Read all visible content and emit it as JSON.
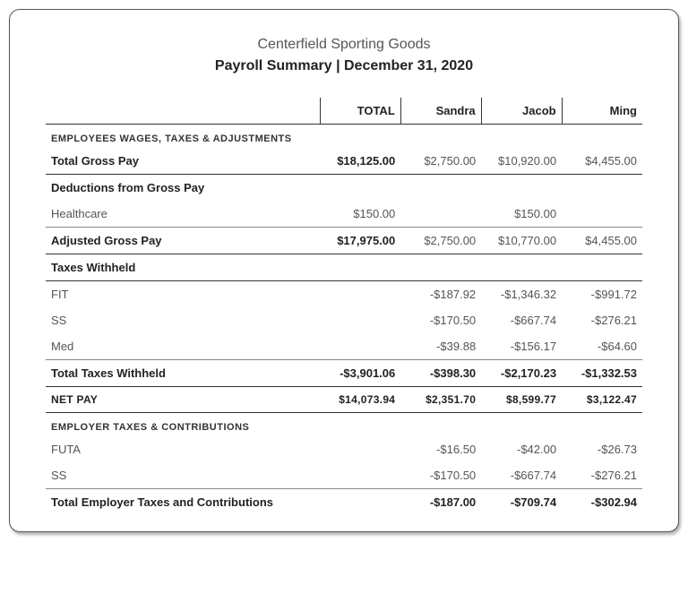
{
  "company": "Centerfield Sporting Goods",
  "title": "Payroll Summary | December 31, 2020",
  "columns": [
    "",
    "TOTAL",
    "Sandra",
    "Jacob",
    "Ming"
  ],
  "sections": {
    "s1": "EMPLOYEES WAGES, TAXES & ADJUSTMENTS",
    "s2": "EMPLOYER TAXES & CONTRIBUTIONS"
  },
  "rows": {
    "gross": {
      "label": "Total Gross Pay",
      "total": "$18,125.00",
      "c1": "$2,750.00",
      "c2": "$10,920.00",
      "c3": "$4,455.00"
    },
    "dedhdr": {
      "label": "Deductions from Gross Pay"
    },
    "health": {
      "label": "Healthcare",
      "total": "$150.00",
      "c1": "",
      "c2": "$150.00",
      "c3": ""
    },
    "adjgross": {
      "label": "Adjusted Gross Pay",
      "total": "$17,975.00",
      "c1": "$2,750.00",
      "c2": "$10,770.00",
      "c3": "$4,455.00"
    },
    "taxhdr": {
      "label": "Taxes Withheld"
    },
    "fit": {
      "label": "FIT",
      "total": "",
      "c1": "-$187.92",
      "c2": "-$1,346.32",
      "c3": "-$991.72"
    },
    "ss": {
      "label": "SS",
      "total": "",
      "c1": "-$170.50",
      "c2": "-$667.74",
      "c3": "-$276.21"
    },
    "med": {
      "label": "Med",
      "total": "",
      "c1": "-$39.88",
      "c2": "-$156.17",
      "c3": "-$64.60"
    },
    "tottax": {
      "label": "Total Taxes Withheld",
      "total": "-$3,901.06",
      "c1": "-$398.30",
      "c2": "-$2,170.23",
      "c3": "-$1,332.53"
    },
    "netpay": {
      "label": "NET PAY",
      "total": "$14,073.94",
      "c1": "$2,351.70",
      "c2": "$8,599.77",
      "c3": "$3,122.47"
    },
    "futa": {
      "label": "FUTA",
      "total": "",
      "c1": "-$16.50",
      "c2": "-$42.00",
      "c3": "-$26.73"
    },
    "ss2": {
      "label": "SS",
      "total": "",
      "c1": "-$170.50",
      "c2": "-$667.74",
      "c3": "-$276.21"
    },
    "totemp": {
      "label": "Total Employer Taxes and Contributions",
      "total": "",
      "c1": "-$187.00",
      "c2": "-$709.74",
      "c3": "-$302.94"
    }
  }
}
